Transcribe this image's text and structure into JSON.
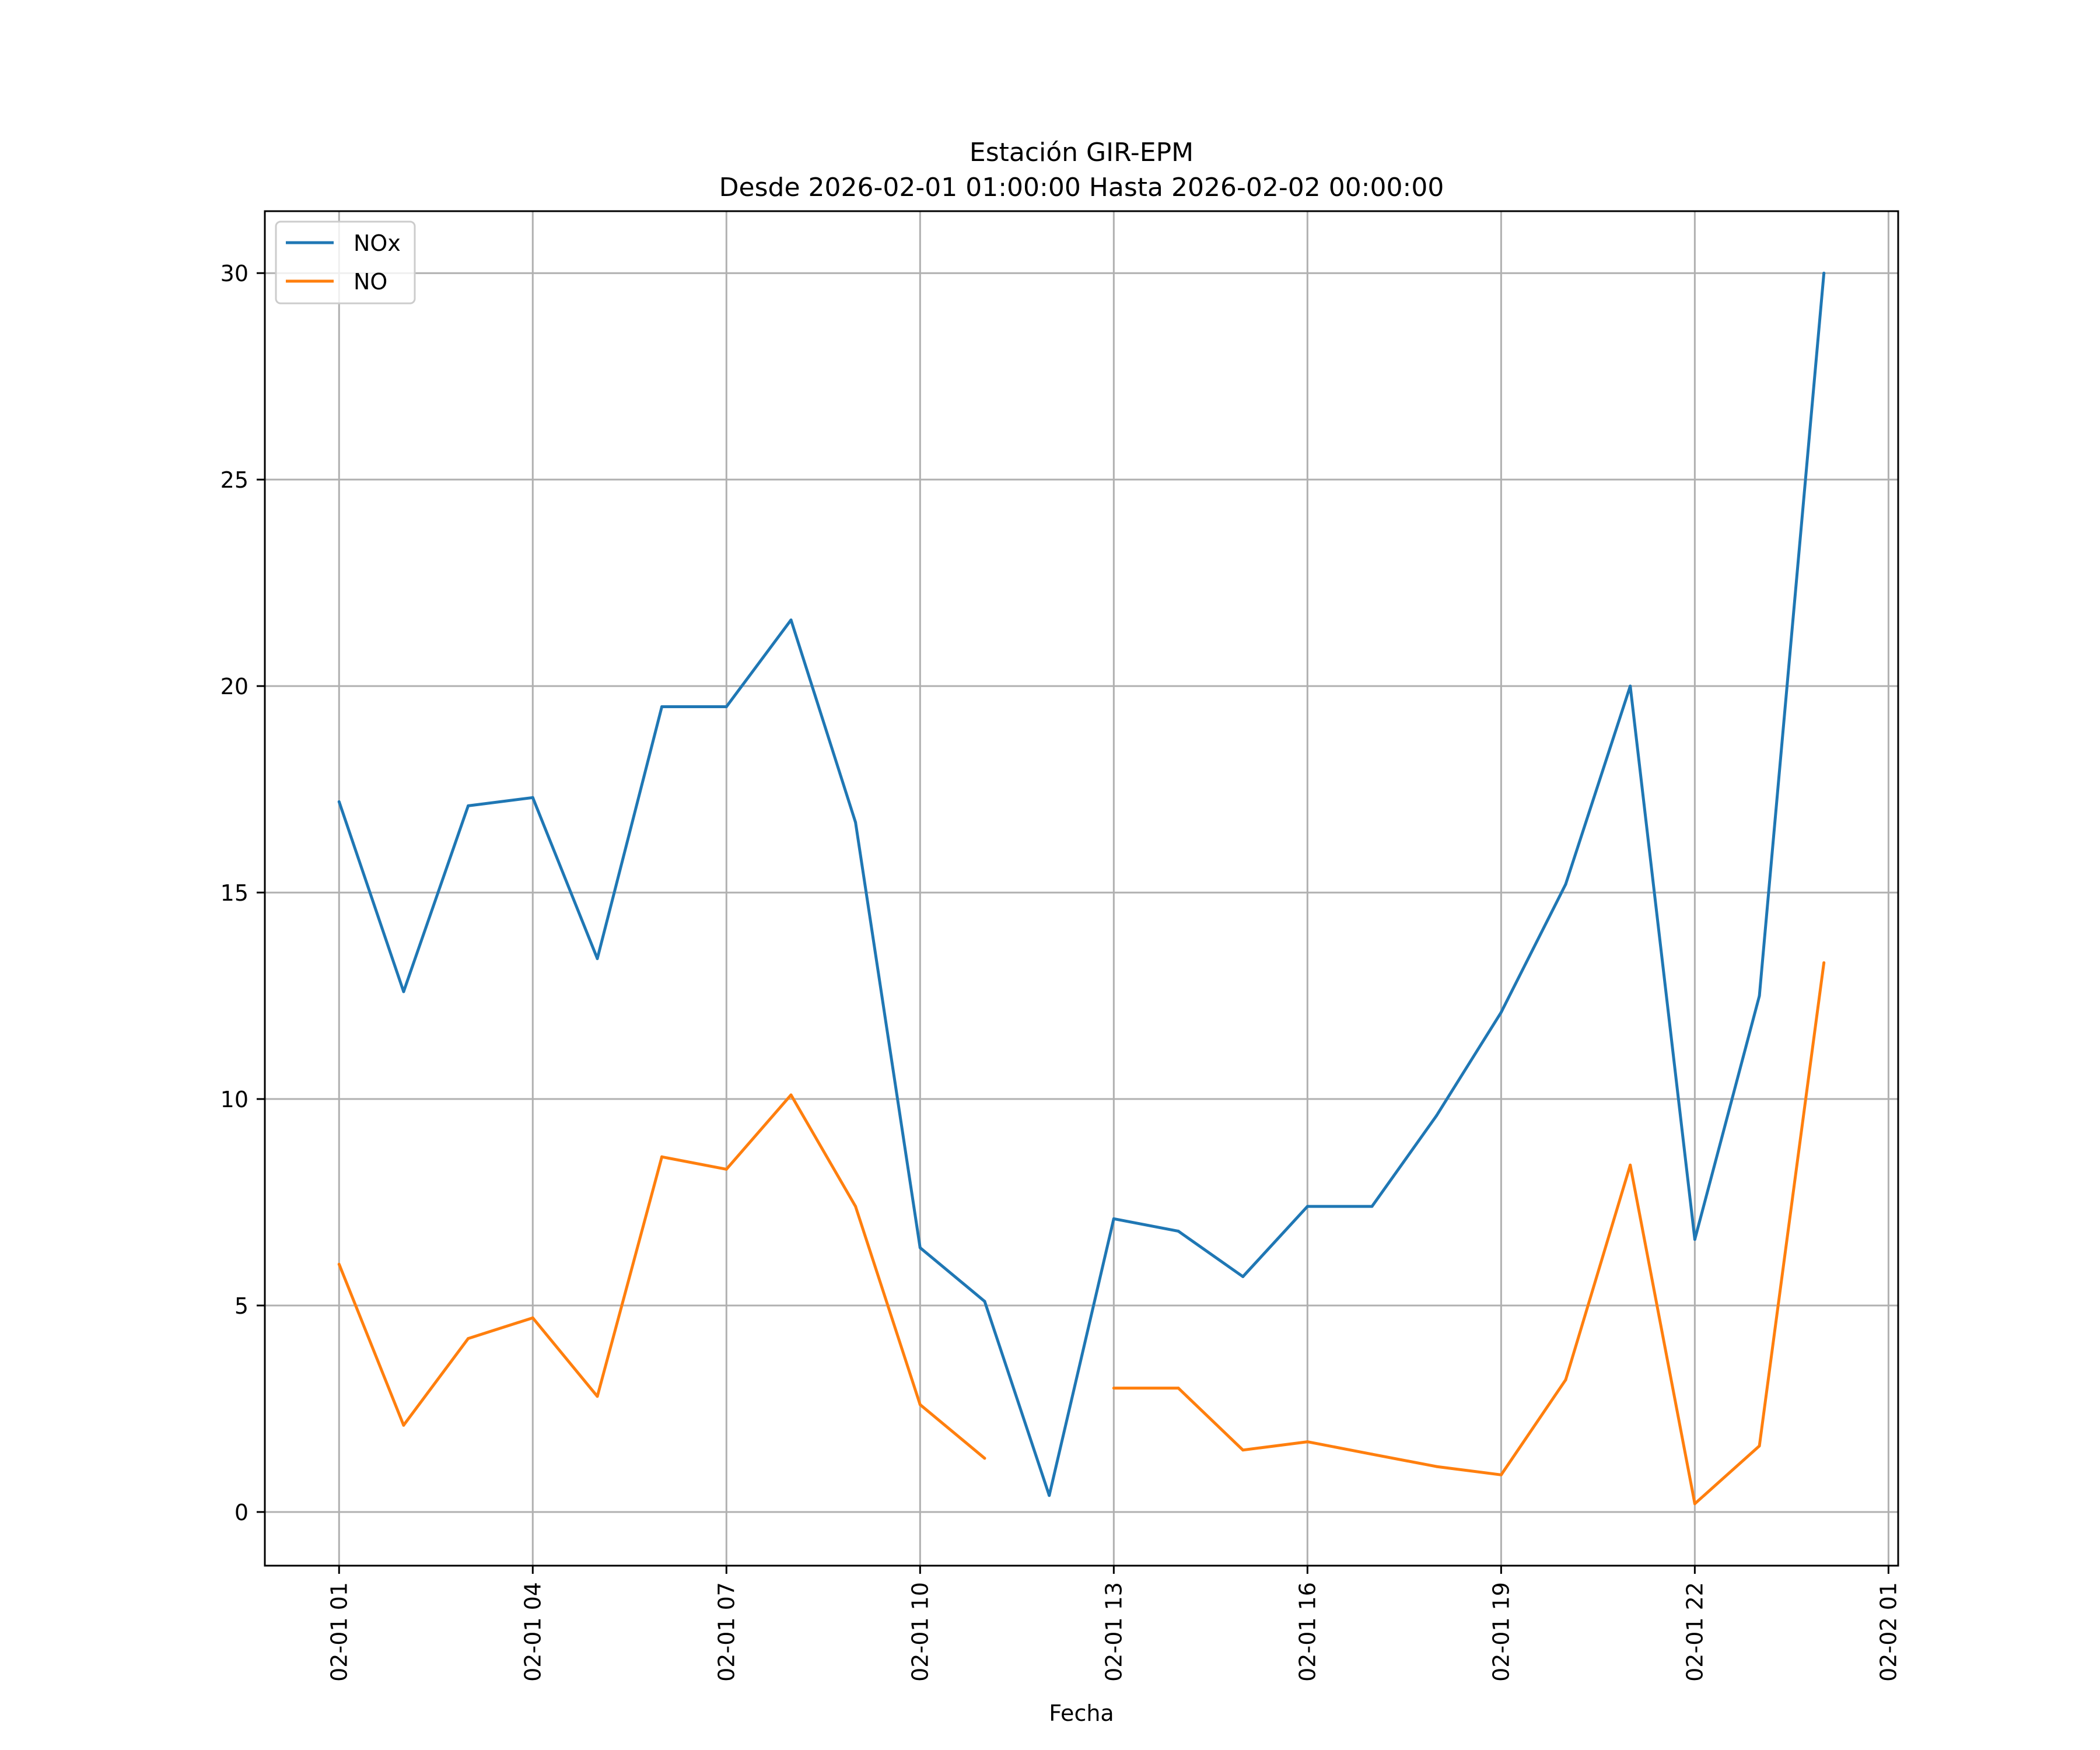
{
  "chart_data": {
    "type": "line",
    "title": "Estación GIR-EPM",
    "subtitle": "Desde 2026-02-01 01:00:00 Hasta 2026-02-02 00:00:00",
    "xlabel": "Fecha",
    "ylabel": "",
    "x_hours": [
      1,
      2,
      3,
      4,
      5,
      6,
      7,
      8,
      9,
      10,
      11,
      12,
      13,
      14,
      15,
      16,
      17,
      18,
      19,
      20,
      21,
      22,
      23,
      24
    ],
    "xlim_hours": [
      -0.15,
      25.15
    ],
    "ylim": [
      -1.3,
      31.5
    ],
    "grid": true,
    "legend_position": "top-left",
    "x_ticks": [
      {
        "hour": 1,
        "label": "02-01 01"
      },
      {
        "hour": 4,
        "label": "02-01 04"
      },
      {
        "hour": 7,
        "label": "02-01 07"
      },
      {
        "hour": 10,
        "label": "02-01 10"
      },
      {
        "hour": 13,
        "label": "02-01 13"
      },
      {
        "hour": 16,
        "label": "02-01 16"
      },
      {
        "hour": 19,
        "label": "02-01 19"
      },
      {
        "hour": 22,
        "label": "02-01 22"
      },
      {
        "hour": 25,
        "label": "02-02 01"
      }
    ],
    "y_ticks": [
      {
        "value": 0,
        "label": "0"
      },
      {
        "value": 5,
        "label": "5"
      },
      {
        "value": 10,
        "label": "10"
      },
      {
        "value": 15,
        "label": "15"
      },
      {
        "value": 20,
        "label": "20"
      },
      {
        "value": 25,
        "label": "25"
      },
      {
        "value": 30,
        "label": "30"
      }
    ],
    "series": [
      {
        "name": "NOx",
        "color": "#1f77b4",
        "values": [
          17.2,
          12.6,
          17.1,
          17.3,
          13.4,
          19.5,
          19.5,
          21.6,
          16.7,
          6.4,
          5.1,
          0.4,
          7.1,
          6.8,
          5.7,
          7.4,
          7.4,
          9.6,
          12.1,
          15.2,
          20.0,
          6.6,
          12.5,
          30.0
        ]
      },
      {
        "name": "NO",
        "color": "#ff7f0e",
        "values": [
          6.0,
          2.1,
          4.2,
          4.7,
          2.8,
          8.6,
          8.3,
          10.1,
          7.4,
          2.6,
          1.3,
          null,
          3.0,
          3.0,
          1.5,
          1.7,
          1.4,
          1.1,
          0.9,
          3.2,
          8.4,
          0.2,
          1.6,
          13.3
        ]
      }
    ]
  }
}
